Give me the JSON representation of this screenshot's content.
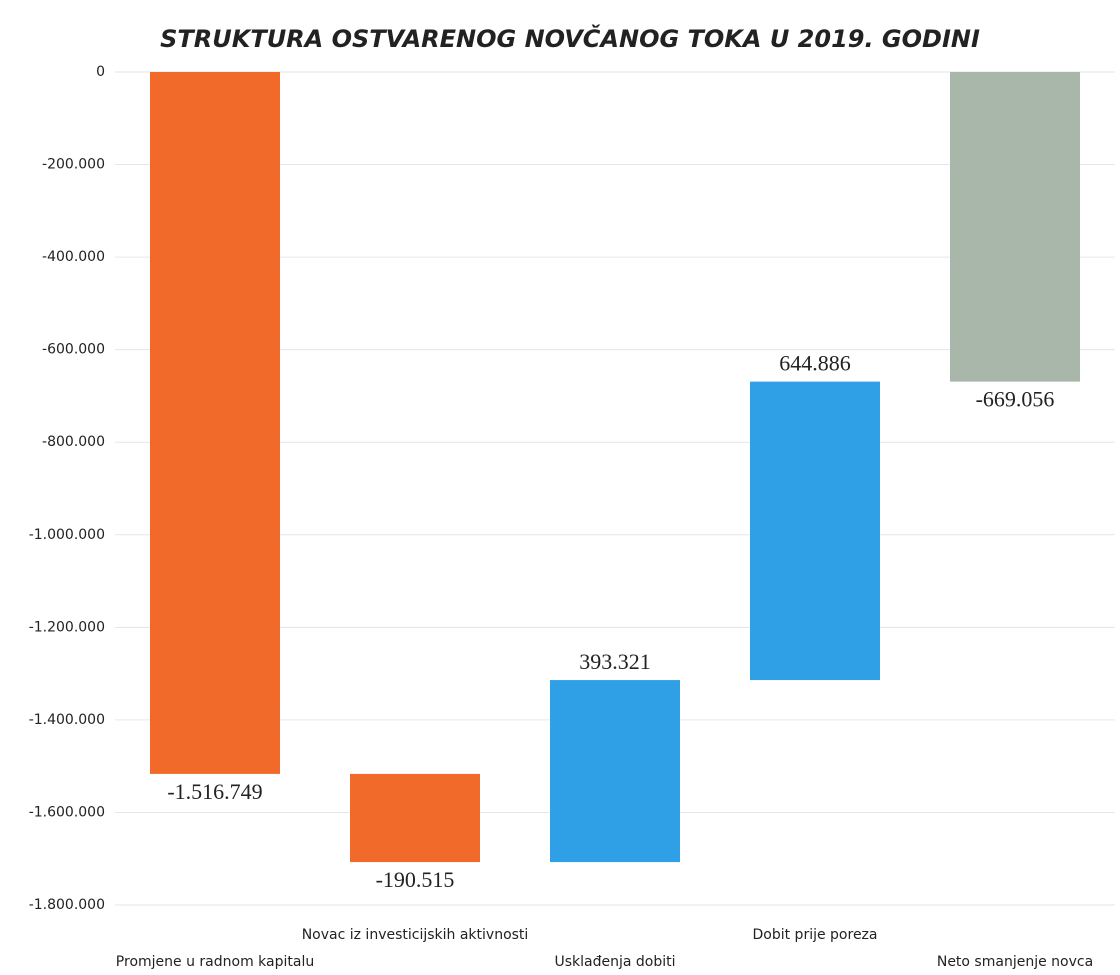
{
  "chart_data": {
    "type": "waterfall",
    "title": "STRUKTURA OSTVARENOG NOVČANOG TOKA U 2019. GODINI",
    "categories": [
      "Promjene u radnom kapitalu",
      "Novac iz investicijskih aktivnosti",
      "Usklađenja dobiti",
      "Dobit prije poreza",
      "Neto smanjenje novca"
    ],
    "values": [
      -1516749,
      -190515,
      393321,
      644886,
      -669056
    ],
    "value_labels": [
      "-1.516.749",
      "-190.515",
      "393.321",
      "644.886",
      "-669.056"
    ],
    "bar_kinds": [
      "decrease",
      "decrease",
      "increase",
      "increase",
      "total"
    ],
    "colors": [
      "#f26a2a",
      "#f26a2a",
      "#2f9fe6",
      "#2f9fe6",
      "#a9b6aa"
    ],
    "ylim": [
      -1800000,
      0
    ],
    "yticks": [
      0,
      {
        "value": -200000,
        "label": "-200.000"
      },
      {
        "value": -400000,
        "label": "-400.000"
      },
      {
        "value": -600000,
        "label": "-600.000"
      },
      {
        "value": -800000,
        "label": "-800.000"
      },
      {
        "value": -1000000,
        "label": "-1.000.000"
      },
      {
        "value": -1200000,
        "label": "-1.200.000"
      },
      {
        "value": -1400000,
        "label": "-1.400.000"
      },
      {
        "value": -1600000,
        "label": "-1.600.000"
      },
      {
        "value": -1800000,
        "label": "-1.800.000"
      }
    ],
    "grid": true
  }
}
